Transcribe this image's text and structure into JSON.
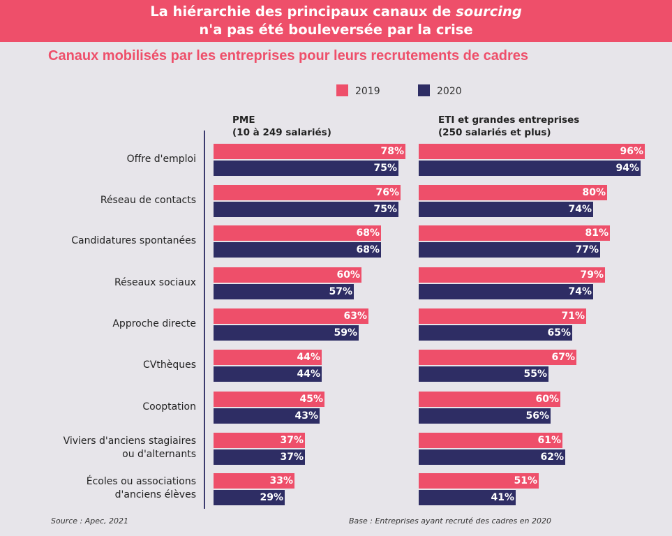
{
  "banner": {
    "line1_prefix": "La hiérarchie des principaux canaux de ",
    "line1_italic": "sourcing",
    "line2": "n'a pas été bouleversée par la crise"
  },
  "chart_data": {
    "type": "bar",
    "orientation": "horizontal",
    "title": "Canaux mobilisés par les entreprises pour leurs recrutements de cadres",
    "legend_position": "top",
    "categories": [
      "Offre d'emploi",
      "Réseau de contacts",
      "Candidatures spontanées",
      "Réseaux sociaux",
      "Approche directe",
      "CVthèques",
      "Cooptation",
      "Viviers d'anciens stagiaires\nou d'alternants",
      "Écoles ou associations\nd'anciens élèves"
    ],
    "series_colors": {
      "2019": "#ee4f6a",
      "2020": "#2e2d64"
    },
    "panels": [
      {
        "title_line1": "PME",
        "title_line2": "(10 à 249 salariés)",
        "series": [
          {
            "name": "2019",
            "values": [
              78,
              76,
              68,
              60,
              63,
              44,
              45,
              37,
              33
            ]
          },
          {
            "name": "2020",
            "values": [
              75,
              75,
              68,
              57,
              59,
              44,
              43,
              37,
              29
            ]
          }
        ]
      },
      {
        "title_line1": "ETI et grandes entreprises",
        "title_line2": "(250 salariés et plus)",
        "series": [
          {
            "name": "2019",
            "values": [
              96,
              80,
              81,
              79,
              71,
              67,
              60,
              61,
              51
            ]
          },
          {
            "name": "2020",
            "values": [
              94,
              74,
              77,
              74,
              65,
              55,
              56,
              62,
              41
            ]
          }
        ]
      }
    ],
    "value_suffix": "%"
  },
  "legend": {
    "label_2019": "2019",
    "label_2020": "2020"
  },
  "footer": {
    "source": "Source : Apec, 2021",
    "base": "Base : Entreprises ayant recruté des cadres en 2020"
  }
}
